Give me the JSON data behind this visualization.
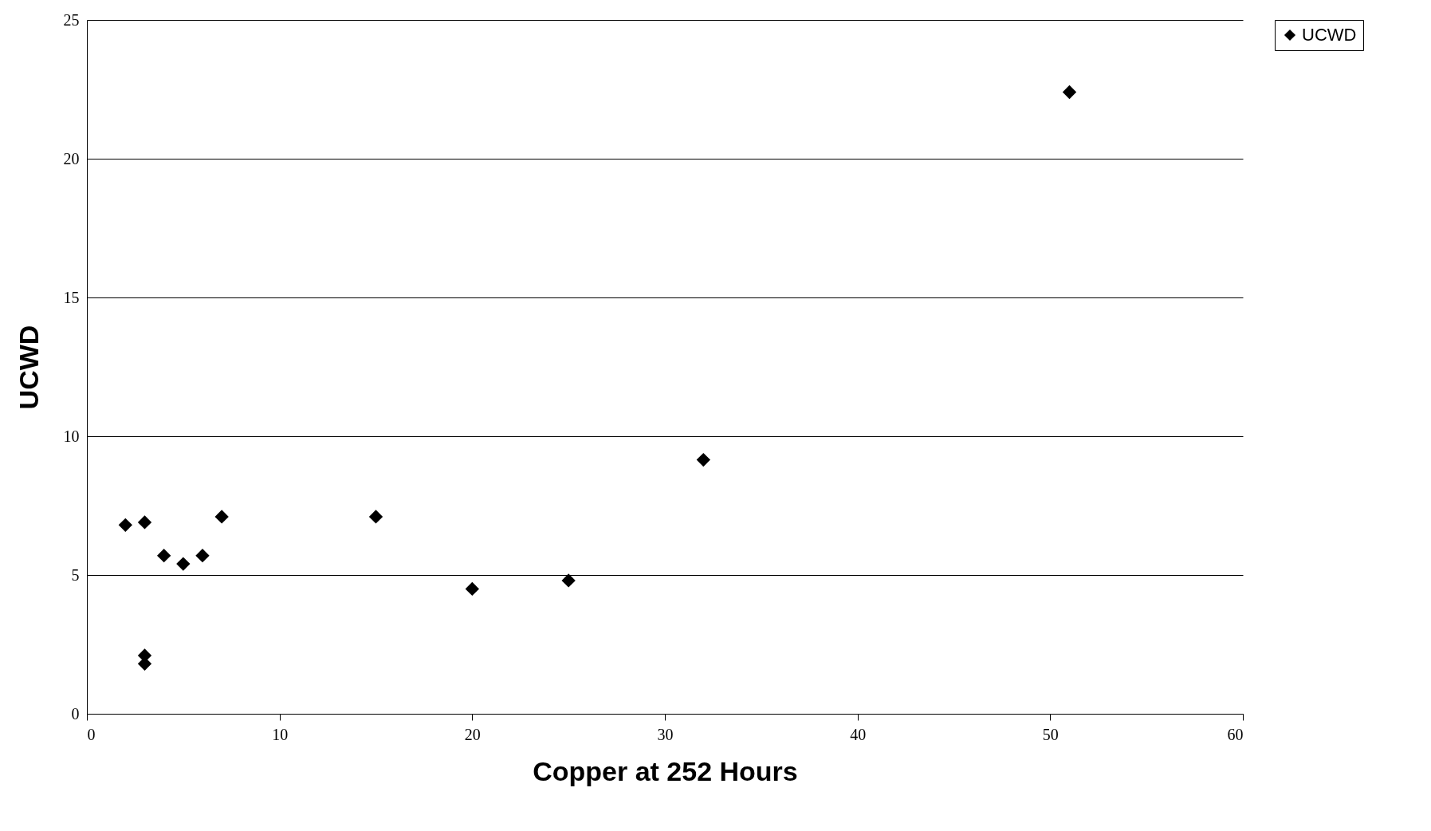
{
  "chart_data": {
    "type": "scatter",
    "xlabel": "Copper at 252 Hours",
    "ylabel": "UCWD",
    "x": [
      2,
      3,
      4,
      5,
      6,
      7,
      15,
      20,
      25,
      32,
      51,
      3,
      3
    ],
    "series": [
      {
        "name": "UCWD",
        "color": "#000000",
        "values": [
          6.8,
          6.9,
          5.7,
          5.4,
          5.7,
          7.1,
          7.1,
          4.5,
          4.8,
          9.15,
          22.4,
          2.1,
          1.8
        ]
      }
    ],
    "xlim": [
      0,
      60
    ],
    "xticks": [
      0,
      10,
      20,
      30,
      40,
      50,
      60
    ],
    "ylim": [
      0,
      25
    ],
    "yticks": [
      0,
      5,
      10,
      15,
      20,
      25
    ],
    "grid": "y",
    "legend": "right",
    "marker": "diamond"
  }
}
